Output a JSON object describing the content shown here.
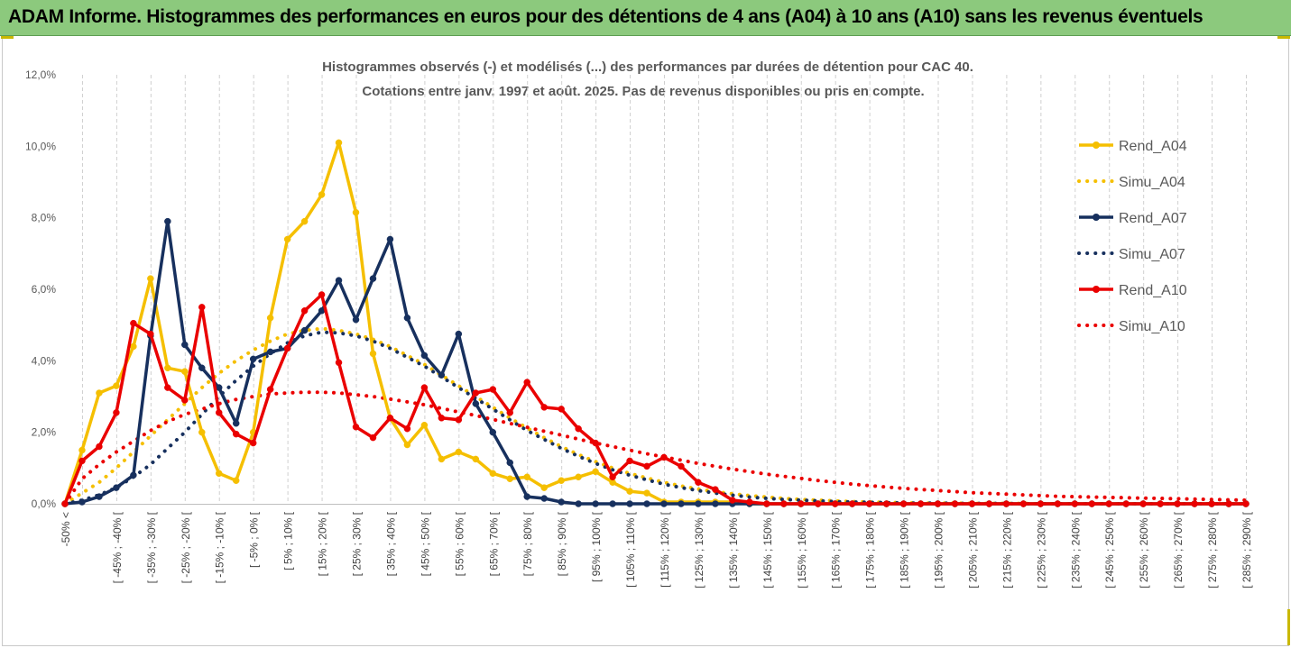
{
  "header": {
    "title": "ADAM Informe. Histogrammes des performances en euros pour des détentions de 4 ans (A04) à 10 ans (A10) sans les revenus éventuels"
  },
  "chart_data": {
    "type": "line",
    "title": "Histogrammes observés (-) et modélisés (...) des performances par durées de détention pour CAC 40.",
    "subtitle": "Cotations entre janv. 1997 et août. 2025. Pas de revenus disponibles ou pris en compte.",
    "xlabel": "",
    "ylabel": "",
    "ylim": [
      0,
      12
    ],
    "y_ticks": [
      "0,0%",
      "2,0%",
      "4,0%",
      "6,0%",
      "8,0%",
      "10,0%",
      "12,0%"
    ],
    "grid": "vertical dashed",
    "legend_position": "right",
    "x_tick_labels": [
      "-50% <",
      "[ -45% ; -40% [",
      "[ -35% ; -30% [",
      "[ -25% ; -20% [",
      "[ -15% ; -10% [",
      "[ -5% ; 0% [",
      "[ 5% ; 10% [",
      "[ 15% ; 20% [",
      "[ 25% ; 30% [",
      "[ 35% ; 40% [",
      "[ 45% ; 50% [",
      "[ 55% ; 60% [",
      "[ 65% ; 70% [",
      "[ 75% ; 80% [",
      "[ 85% ; 90% [",
      "[ 95% ; 100% [",
      "[ 105% ; 110% [",
      "[ 115% ; 120% [",
      "[ 125% ; 130% [",
      "[ 135% ; 140% [",
      "[ 145% ; 150% [",
      "[ 155% ; 160% [",
      "[ 165% ; 170% [",
      "[ 175% ; 180% [",
      "[ 185% ; 190% [",
      "[ 195% ; 200% [",
      "[ 205% ; 210% [",
      "[ 215% ; 220% [",
      "[ 225% ; 230% [",
      "[ 235% ; 240% [",
      "[ 245% ; 250% [",
      "[ 255% ; 260% [",
      "[ 265% ; 270% [",
      "[ 275% ; 280% [",
      "[ 285% ; 290% ["
    ],
    "series": [
      {
        "name": "Rend_A04",
        "color": "#f5bf00",
        "style": "solid",
        "markers": true,
        "values": [
          0.0,
          1.5,
          3.1,
          3.3,
          4.4,
          6.3,
          3.8,
          3.7,
          2.0,
          0.85,
          0.65,
          2.0,
          5.2,
          7.4,
          7.9,
          8.65,
          10.1,
          8.15,
          4.2,
          2.4,
          1.65,
          2.2,
          1.25,
          1.45,
          1.25,
          0.85,
          0.7,
          0.75,
          0.45,
          0.65,
          0.75,
          0.9,
          0.6,
          0.35,
          0.3,
          0.05,
          0.05,
          0.05,
          0.05,
          0.05,
          0.0,
          0.0,
          0.0,
          0.0,
          0.0,
          0.0,
          0.0,
          0.0,
          0.0,
          0.0,
          0.0,
          0.0,
          0.0,
          0.0,
          0.0,
          0.0,
          0.0,
          0.0,
          0.0,
          0.0,
          0.0,
          0.0,
          0.0,
          0.0,
          0.0,
          0.0,
          0.0,
          0.0,
          0.0,
          0.0
        ]
      },
      {
        "name": "Simu_A04",
        "color": "#f5bf00",
        "style": "dotted",
        "markers": false,
        "values": [
          0.0,
          0.3,
          0.6,
          1.0,
          1.45,
          1.9,
          2.35,
          2.8,
          3.25,
          3.65,
          4.0,
          4.3,
          4.55,
          4.75,
          4.85,
          4.9,
          4.85,
          4.75,
          4.6,
          4.4,
          4.15,
          3.9,
          3.6,
          3.3,
          3.0,
          2.7,
          2.4,
          2.12,
          1.85,
          1.6,
          1.38,
          1.18,
          1.0,
          0.85,
          0.72,
          0.6,
          0.5,
          0.41,
          0.34,
          0.28,
          0.23,
          0.19,
          0.15,
          0.12,
          0.1,
          0.08,
          0.06,
          0.05,
          0.04,
          0.03,
          0.02,
          0.02,
          0.02,
          0.01,
          0.01,
          0.01,
          0.01,
          0.0,
          0.0,
          0.0,
          0.0,
          0.0,
          0.0,
          0.0,
          0.0,
          0.0,
          0.0,
          0.0,
          0.0,
          0.0
        ]
      },
      {
        "name": "Rend_A07",
        "color": "#17305e",
        "style": "solid",
        "markers": true,
        "values": [
          0.0,
          0.05,
          0.2,
          0.45,
          0.8,
          4.7,
          7.9,
          4.45,
          3.8,
          3.25,
          2.25,
          4.05,
          4.25,
          4.35,
          4.85,
          5.4,
          6.25,
          5.15,
          6.3,
          7.4,
          5.2,
          4.15,
          3.6,
          4.75,
          2.8,
          2.0,
          1.15,
          0.2,
          0.15,
          0.05,
          0.0,
          0.0,
          0.0,
          0.0,
          0.0,
          0.0,
          0.0,
          0.0,
          0.0,
          0.0,
          0.0,
          0.0,
          0.0,
          0.0,
          0.0,
          0.0,
          0.0,
          0.0,
          0.0,
          0.0,
          0.0,
          0.0,
          0.0,
          0.0,
          0.0,
          0.0,
          0.0,
          0.0,
          0.0,
          0.0,
          0.0,
          0.0,
          0.0,
          0.0,
          0.0,
          0.0,
          0.0,
          0.0,
          0.0,
          0.0
        ]
      },
      {
        "name": "Simu_A07",
        "color": "#17305e",
        "style": "dotted",
        "markers": false,
        "values": [
          0.0,
          0.1,
          0.25,
          0.45,
          0.75,
          1.1,
          1.55,
          2.0,
          2.5,
          3.0,
          3.45,
          3.85,
          4.2,
          4.5,
          4.7,
          4.8,
          4.78,
          4.7,
          4.55,
          4.35,
          4.1,
          3.85,
          3.55,
          3.25,
          2.95,
          2.65,
          2.35,
          2.05,
          1.8,
          1.55,
          1.33,
          1.13,
          0.95,
          0.8,
          0.67,
          0.55,
          0.45,
          0.37,
          0.3,
          0.24,
          0.19,
          0.15,
          0.12,
          0.1,
          0.08,
          0.06,
          0.05,
          0.04,
          0.03,
          0.02,
          0.02,
          0.02,
          0.01,
          0.01,
          0.01,
          0.01,
          0.0,
          0.0,
          0.0,
          0.0,
          0.0,
          0.0,
          0.0,
          0.0,
          0.0,
          0.0,
          0.0,
          0.0,
          0.0,
          0.0
        ]
      },
      {
        "name": "Rend_A10",
        "color": "#ea0000",
        "style": "solid",
        "markers": true,
        "values": [
          0.0,
          1.2,
          1.6,
          2.55,
          5.05,
          4.75,
          3.25,
          2.9,
          5.5,
          2.55,
          1.95,
          1.7,
          3.2,
          4.35,
          5.4,
          5.85,
          3.95,
          2.15,
          1.85,
          2.4,
          2.1,
          3.25,
          2.4,
          2.35,
          3.1,
          3.2,
          2.55,
          3.4,
          2.7,
          2.65,
          2.1,
          1.7,
          0.75,
          1.2,
          1.05,
          1.3,
          1.05,
          0.6,
          0.4,
          0.1,
          0.05,
          0.0,
          0.0,
          0.0,
          0.0,
          0.0,
          0.0,
          0.0,
          0.0,
          0.0,
          0.0,
          0.0,
          0.0,
          0.0,
          0.0,
          0.0,
          0.0,
          0.0,
          0.0,
          0.0,
          0.0,
          0.0,
          0.0,
          0.0,
          0.0,
          0.0,
          0.0,
          0.0,
          0.0,
          0.0
        ]
      },
      {
        "name": "Simu_A10",
        "color": "#ea0000",
        "style": "dotted",
        "markers": false,
        "values": [
          0.0,
          0.7,
          1.1,
          1.45,
          1.75,
          2.05,
          2.3,
          2.5,
          2.65,
          2.8,
          2.92,
          3.0,
          3.07,
          3.1,
          3.12,
          3.12,
          3.1,
          3.05,
          3.0,
          2.93,
          2.85,
          2.77,
          2.67,
          2.57,
          2.47,
          2.36,
          2.25,
          2.14,
          2.03,
          1.92,
          1.81,
          1.7,
          1.6,
          1.5,
          1.4,
          1.31,
          1.22,
          1.13,
          1.05,
          0.97,
          0.9,
          0.83,
          0.77,
          0.71,
          0.65,
          0.6,
          0.55,
          0.51,
          0.47,
          0.43,
          0.4,
          0.37,
          0.34,
          0.31,
          0.29,
          0.27,
          0.25,
          0.23,
          0.21,
          0.2,
          0.19,
          0.18,
          0.17,
          0.16,
          0.15,
          0.14,
          0.13,
          0.12,
          0.11,
          0.1
        ]
      }
    ]
  }
}
